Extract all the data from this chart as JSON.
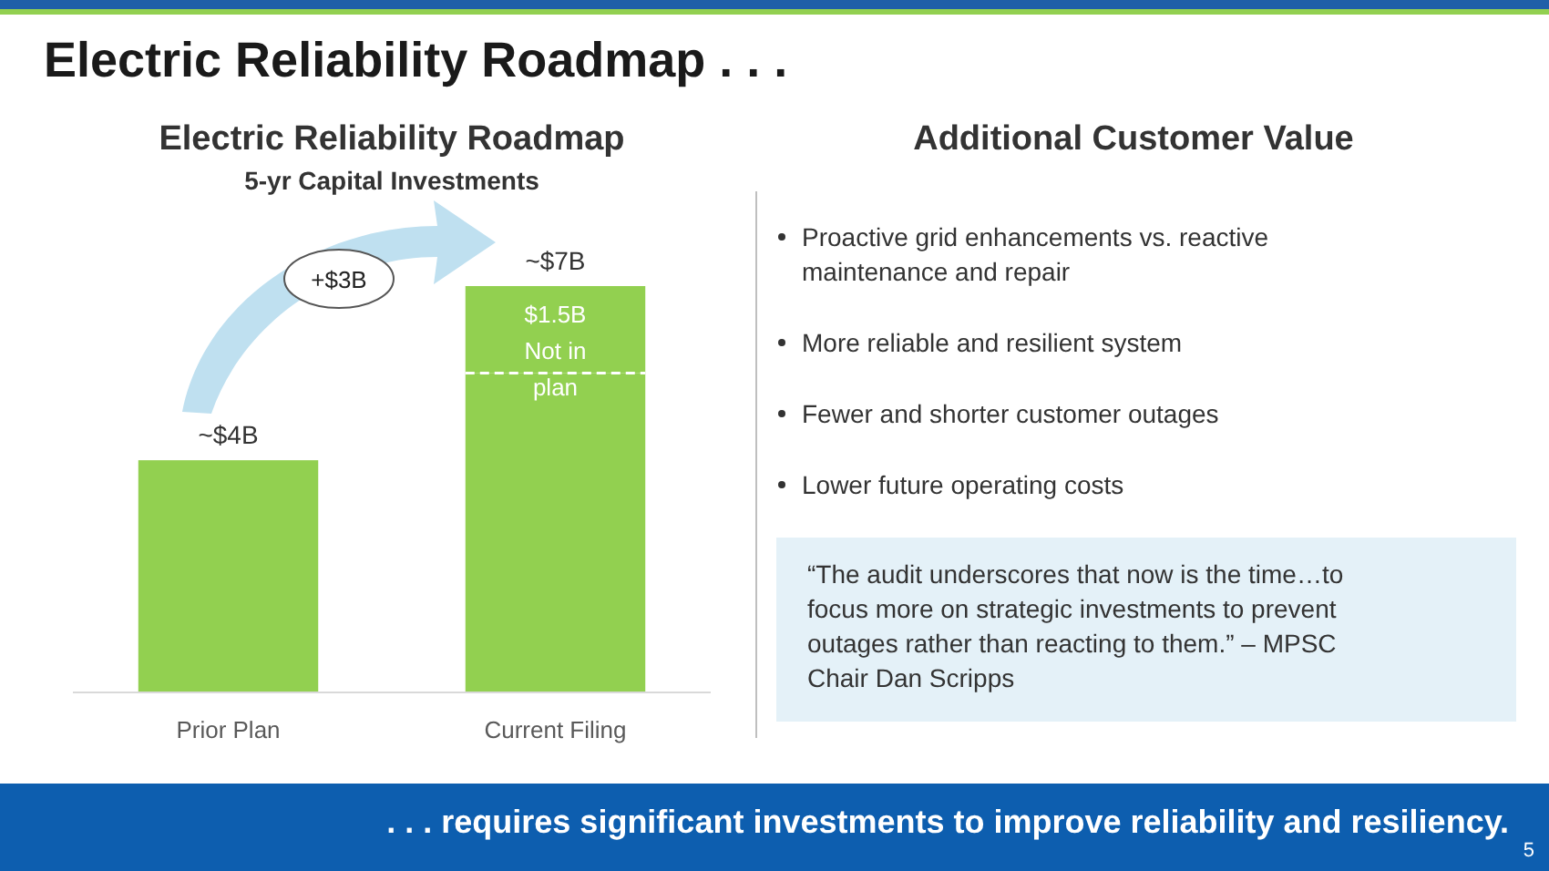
{
  "chart_data": {
    "type": "bar",
    "title": "Electric Reliability Roadmap",
    "subtitle": "5-yr Capital Investments",
    "categories": [
      "Prior Plan",
      "Current Filing"
    ],
    "relative": false,
    "stacked": true,
    "series": [
      {
        "color": "#92d050",
        "values": [
          4,
          5.5
        ]
      },
      {
        "color": "#92d050",
        "values": [
          null,
          1.5
        ],
        "line_style": "dashed",
        "value_labels": [
          null,
          "$1.5B Not in plan"
        ]
      }
    ],
    "totals": [
      "~$4B",
      "~$7B"
    ],
    "annotations": [
      "Electric Reliability Roadmap . . .",
      "+$3B",
      "Additional Customer Value",
      "Proactive grid enhancements vs. reactive maintenance and repair",
      "More reliable and resilient system",
      "Fewer and shorter customer outages",
      "Lower future operating costs",
      "“The audit underscores that now is the time…to focus more on strategic investments to prevent outages rather than reacting to them.” – MPSC Chair Dan Scripps",
      ". . . requires significant investments to improve reliability and resiliency.",
      "5"
    ]
  }
}
